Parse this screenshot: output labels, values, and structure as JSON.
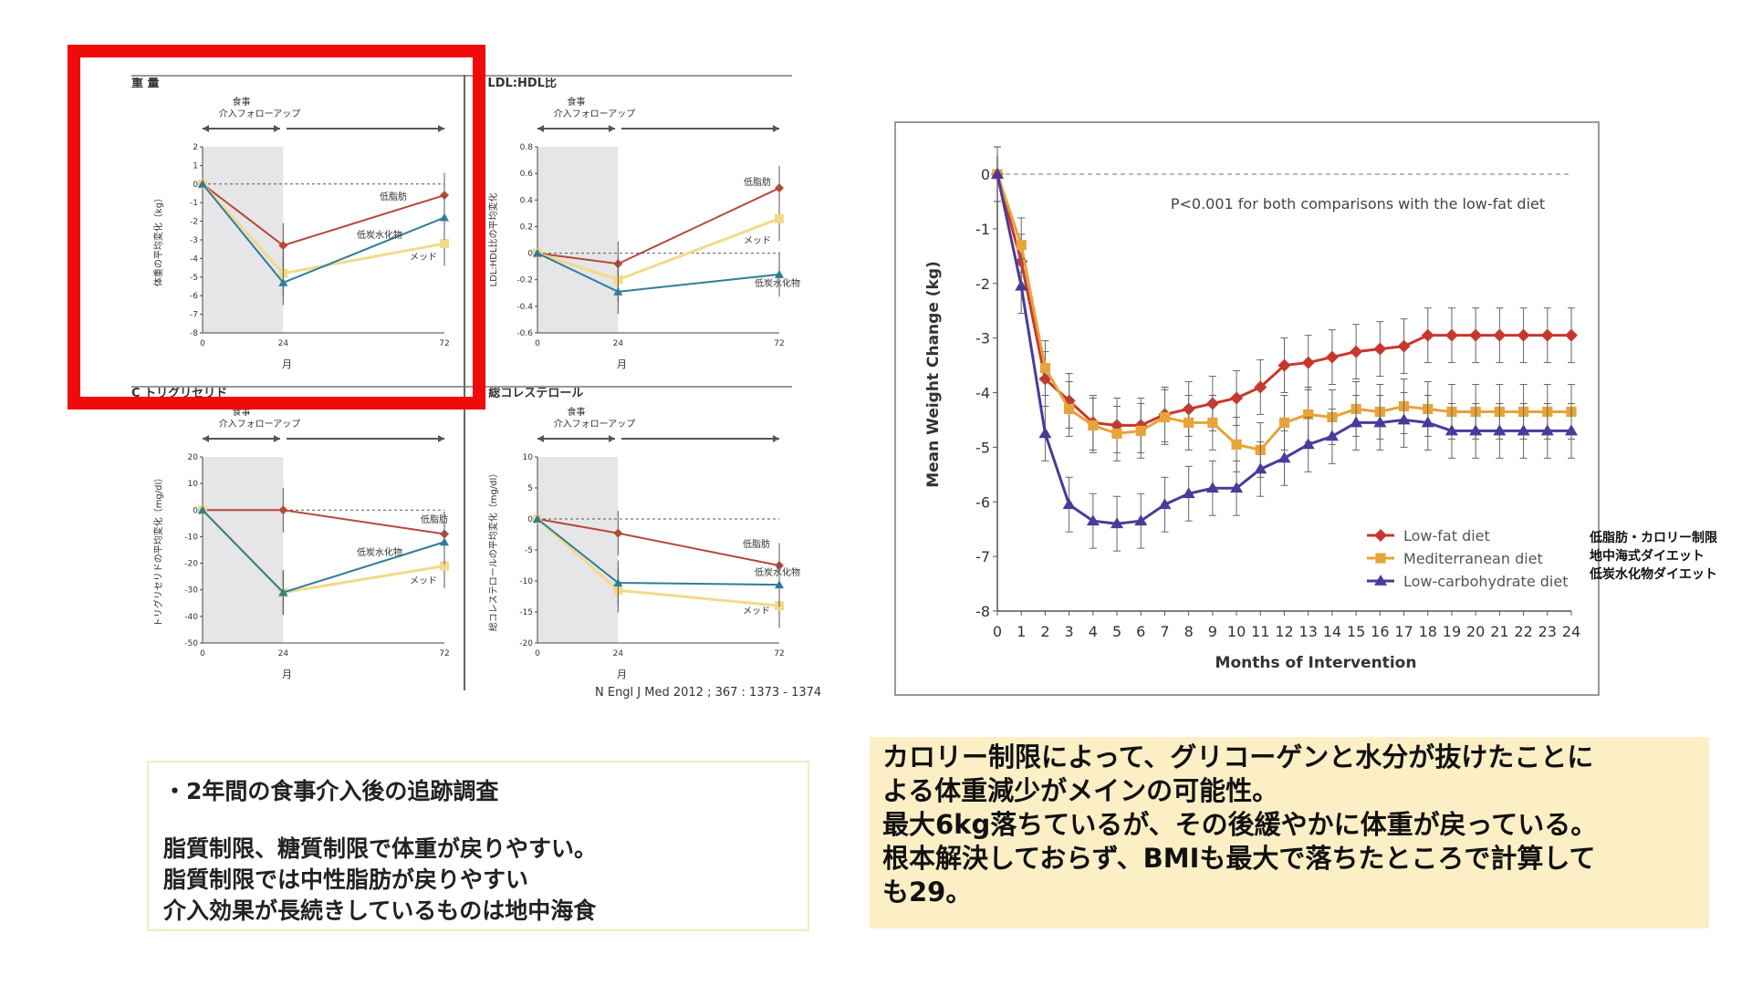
{
  "figure_left": {
    "annotation_top": "食事",
    "annotation_bottom": "介入フォローアップ",
    "xlabel": "月",
    "series_names": {
      "low_fat": "低脂肪",
      "low_carb": "低炭水化物",
      "med": "メッド"
    },
    "colors": {
      "low_fat": "#b5493a",
      "low_carb": "#2e7d9a",
      "med": "#f3d98a"
    },
    "citation": "N Engl J Med 2012 ; 367 : 1373 - 1374"
  },
  "chart_data": [
    {
      "type": "line",
      "title": "重 量",
      "ylabel": "体重の平均変化（kg）",
      "x": [
        0,
        24,
        72
      ],
      "xticks": [
        "0",
        "24",
        "72"
      ],
      "ylim": [
        -8,
        2
      ],
      "yticks": [
        2,
        1,
        0,
        -1,
        -2,
        -3,
        -4,
        -5,
        -6,
        -7,
        -8
      ],
      "series": [
        {
          "key": "low_fat",
          "values": [
            0,
            -3.3,
            -0.6
          ]
        },
        {
          "key": "med",
          "values": [
            0,
            -4.8,
            -3.2
          ]
        },
        {
          "key": "low_carb",
          "values": [
            0,
            -5.3,
            -1.8
          ]
        }
      ]
    },
    {
      "type": "line",
      "title": "B   LDL:HDL比",
      "ylabel": "LDL:HDL比の平均変化",
      "x": [
        0,
        24,
        72
      ],
      "xticks": [
        "0",
        "24",
        "72"
      ],
      "ylim": [
        -0.6,
        0.8
      ],
      "yticks": [
        0.8,
        0.6,
        0.4,
        0.2,
        0.0,
        -0.2,
        -0.4,
        -0.6
      ],
      "series": [
        {
          "key": "low_fat",
          "values": [
            0,
            -0.08,
            0.49
          ]
        },
        {
          "key": "med",
          "values": [
            0,
            -0.2,
            0.26
          ]
        },
        {
          "key": "low_carb",
          "values": [
            0,
            -0.29,
            -0.16
          ]
        }
      ]
    },
    {
      "type": "line",
      "title": "C  トリグリセリド",
      "ylabel": "トリグリセリドの平均変化（mg/dl）",
      "x": [
        0,
        24,
        72
      ],
      "xticks": [
        "0",
        "24",
        "72"
      ],
      "ylim": [
        -50,
        20
      ],
      "yticks": [
        20,
        10,
        0,
        -10,
        -20,
        -30,
        -40,
        -50
      ],
      "series": [
        {
          "key": "low_fat",
          "values": [
            0,
            0,
            -9
          ]
        },
        {
          "key": "med",
          "values": [
            0,
            -31,
            -21
          ]
        },
        {
          "key": "low_carb",
          "values": [
            0,
            -31,
            -12
          ]
        }
      ]
    },
    {
      "type": "line",
      "title": "D  総コレステロール",
      "ylabel": "総コレステロールの平均変化（mg/dl）",
      "x": [
        0,
        24,
        72
      ],
      "xticks": [
        "0",
        "24",
        "72"
      ],
      "ylim": [
        -20,
        10
      ],
      "yticks": [
        10,
        5,
        0,
        -5,
        -10,
        -15,
        -20
      ],
      "series": [
        {
          "key": "low_fat",
          "values": [
            0,
            -2.3,
            -7.5
          ]
        },
        {
          "key": "med",
          "values": [
            0,
            -11.5,
            -14
          ]
        },
        {
          "key": "low_carb",
          "values": [
            0,
            -10.3,
            -10.6
          ]
        }
      ]
    },
    {
      "type": "line",
      "title": "",
      "xlabel": "Months of Intervention",
      "ylabel": "Mean Weight Change (kg)",
      "ylim": [
        -8,
        0
      ],
      "xlim": [
        0,
        24
      ],
      "annotation": "P<0.001 for both comparisons with the low-fat diet",
      "x": [
        0,
        1,
        2,
        3,
        4,
        5,
        6,
        7,
        8,
        9,
        10,
        11,
        12,
        13,
        14,
        15,
        16,
        17,
        18,
        19,
        20,
        21,
        22,
        23,
        24
      ],
      "yticks": [
        0,
        -1,
        -2,
        -3,
        -4,
        -5,
        -6,
        -7,
        -8
      ],
      "legend_position": "bottom-right",
      "series": [
        {
          "name": "Low-fat diet",
          "color": "#c8372d",
          "marker": "diamond",
          "values": [
            0,
            -1.6,
            -3.75,
            -4.15,
            -4.55,
            -4.6,
            -4.6,
            -4.4,
            -4.3,
            -4.2,
            -4.1,
            -3.9,
            -3.5,
            -3.45,
            -3.35,
            -3.25,
            -3.2,
            -3.15,
            -2.95,
            -2.95,
            -2.95,
            -2.95,
            -2.95,
            -2.95,
            -2.95
          ]
        },
        {
          "name": "Mediterranean diet",
          "color": "#e8a33a",
          "marker": "square",
          "values": [
            0,
            -1.3,
            -3.55,
            -4.3,
            -4.6,
            -4.75,
            -4.7,
            -4.45,
            -4.55,
            -4.55,
            -4.95,
            -5.05,
            -4.55,
            -4.4,
            -4.45,
            -4.3,
            -4.35,
            -4.25,
            -4.3,
            -4.35,
            -4.35,
            -4.35,
            -4.35,
            -4.35,
            -4.35
          ]
        },
        {
          "name": "Low-carbohydrate diet",
          "color": "#4a3a9a",
          "marker": "triangle",
          "values": [
            0,
            -2.05,
            -4.75,
            -6.05,
            -6.35,
            -6.4,
            -6.35,
            -6.05,
            -5.85,
            -5.75,
            -5.75,
            -5.4,
            -5.2,
            -4.95,
            -4.8,
            -4.55,
            -4.55,
            -4.5,
            -4.55,
            -4.7,
            -4.7,
            -4.7,
            -4.7,
            -4.7,
            -4.7
          ]
        }
      ],
      "error_bar": 0.5
    }
  ],
  "jp_legend": [
    "低脂肪・カロリー制限",
    "地中海式ダイエット",
    "低炭水化物ダイエット"
  ],
  "note_left": {
    "heading": "・2年間の食事介入後の追跡調査",
    "lines": [
      "脂質制限、糖質制限で体重が戻りやすい。",
      "脂質制限では中性脂肪が戻りやすい",
      "介入効果が長続きしているものは地中海食"
    ]
  },
  "note_right": {
    "lines": [
      "カロリー制限によって、グリコーゲンと水分が抜けたことに",
      "よる体重減少がメインの可能性。",
      "最大6kg落ちているが、その後緩やかに体重が戻っている。",
      "根本解決しておらず、BMIも最大で落ちたところで計算して",
      "も29。"
    ]
  }
}
